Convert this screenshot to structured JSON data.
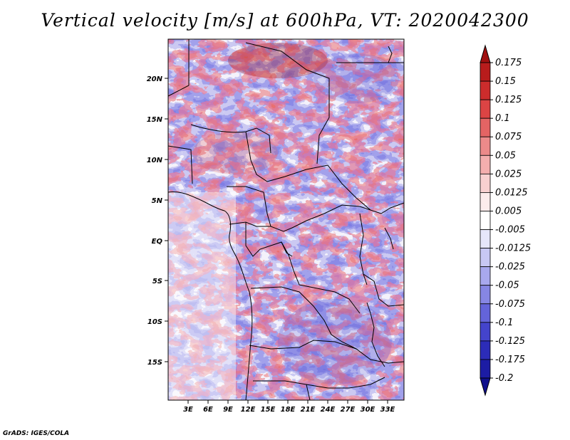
{
  "title": "Vertical velocity [m/s] at 600hPa, VT: 2020042300",
  "credit": "GrADS: IGES/COLA",
  "map": {
    "lat_labels": [
      "20N",
      "15N",
      "10N",
      "5N",
      "EQ",
      "5S",
      "10S",
      "15S"
    ],
    "lon_labels": [
      "3E",
      "6E",
      "9E",
      "12E",
      "15E",
      "18E",
      "21E",
      "24E",
      "27E",
      "30E",
      "33E"
    ]
  },
  "colorbar": {
    "labels": [
      "0.175",
      "0.15",
      "0.125",
      "0.1",
      "0.075",
      "0.05",
      "0.025",
      "0.0125",
      "0.005",
      "-0.005",
      "-0.0125",
      "-0.025",
      "-0.05",
      "-0.075",
      "-0.1",
      "-0.125",
      "-0.175",
      "-0.2"
    ],
    "colors": [
      "#a01010",
      "#b81c1c",
      "#cc2c2c",
      "#dc4444",
      "#e46464",
      "#ec8a8a",
      "#f4aeae",
      "#f8d0d0",
      "#fcecec",
      "#ffffff",
      "#e6e6fa",
      "#c8c8f4",
      "#a8a8ee",
      "#8686e4",
      "#6464da",
      "#4444cc",
      "#2c2cb8",
      "#1c1ca4",
      "#10108c"
    ]
  }
}
